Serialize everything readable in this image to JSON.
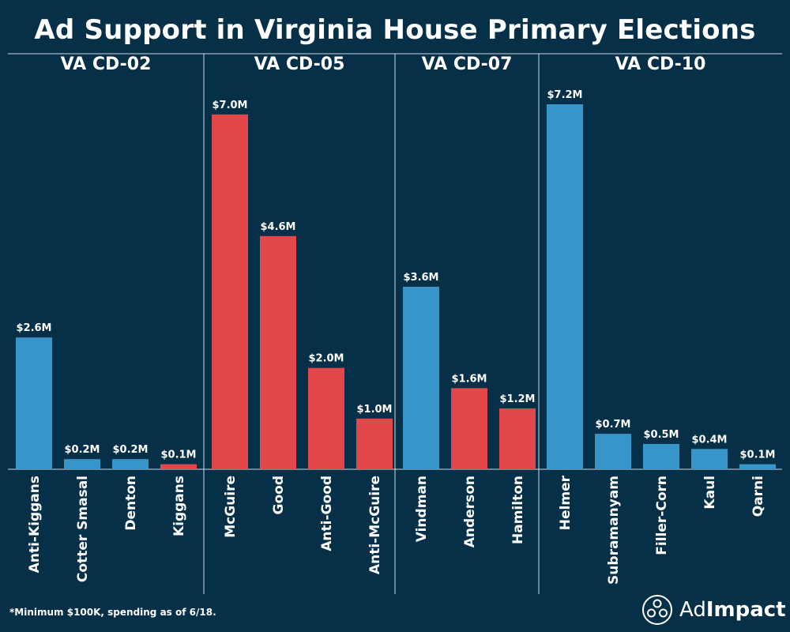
{
  "chart_data": {
    "type": "bar",
    "title": "Ad Support in Virginia House Primary Elections",
    "groups": [
      {
        "name": "VA CD-02",
        "color": "#3895c9",
        "bars": [
          {
            "label": "Anti-Kiggans",
            "value": 2.6,
            "text": "$2.6M"
          },
          {
            "label": "Cotter Smasal",
            "value": 0.2,
            "text": "$0.2M"
          },
          {
            "label": "Denton",
            "value": 0.2,
            "text": "$0.2M"
          },
          {
            "label": "Kiggans",
            "value": 0.1,
            "text": "$0.1M",
            "color": "#e2484a"
          }
        ]
      },
      {
        "name": "VA CD-05",
        "color": "#e2484a",
        "bars": [
          {
            "label": "McGuire",
            "value": 7.0,
            "text": "$7.0M"
          },
          {
            "label": "Good",
            "value": 4.6,
            "text": "$4.6M"
          },
          {
            "label": "Anti-Good",
            "value": 2.0,
            "text": "$2.0M"
          },
          {
            "label": "Anti-McGuire",
            "value": 1.0,
            "text": "$1.0M"
          }
        ]
      },
      {
        "name": "VA CD-07",
        "color": "#3895c9",
        "bars": [
          {
            "label": "Vindman",
            "value": 3.6,
            "text": "$3.6M"
          },
          {
            "label": "Anderson",
            "value": 1.6,
            "text": "$1.6M",
            "color": "#e2484a"
          },
          {
            "label": "Hamilton",
            "value": 1.2,
            "text": "$1.2M",
            "color": "#e2484a"
          }
        ]
      },
      {
        "name": "VA CD-10",
        "color": "#3895c9",
        "bars": [
          {
            "label": "Helmer",
            "value": 7.2,
            "text": "$7.2M"
          },
          {
            "label": "Subramanyam",
            "value": 0.7,
            "text": "$0.7M"
          },
          {
            "label": "Filler-Corn",
            "value": 0.5,
            "text": "$0.5M"
          },
          {
            "label": "Kaul",
            "value": 0.4,
            "text": "$0.4M"
          },
          {
            "label": "Qarni",
            "value": 0.1,
            "text": "$0.1M"
          }
        ]
      }
    ],
    "ylim": [
      0,
      7.2
    ],
    "grid": false,
    "legend": "none"
  },
  "footnote": "*Minimum $100K, spending as of 6/18.",
  "logo": {
    "ad": "Ad",
    "impact": "Impact",
    "icon": "adimpact-logo-icon"
  }
}
